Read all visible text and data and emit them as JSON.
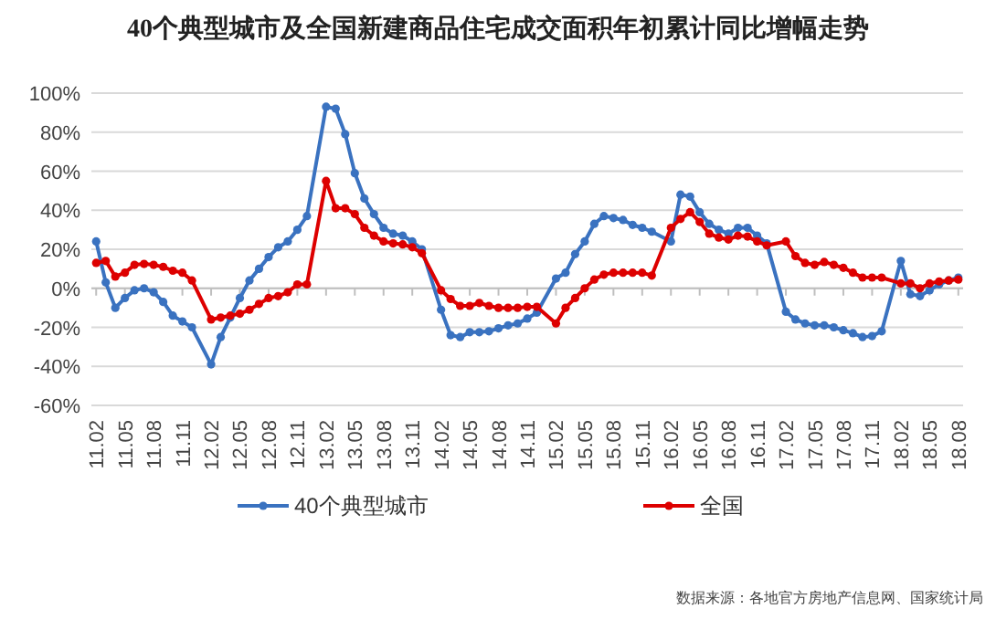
{
  "chart_data": {
    "type": "line",
    "title": "40个典型城市及全国新建商品住宅成交面积年初累计同比增幅走势",
    "categories": [
      "11.02",
      null,
      null,
      "11.05",
      null,
      null,
      "11.08",
      null,
      null,
      "11.11",
      null,
      null,
      "12.02",
      null,
      null,
      "12.05",
      null,
      null,
      "12.08",
      null,
      null,
      "12.11",
      null,
      null,
      "13.02",
      null,
      null,
      "13.05",
      null,
      null,
      "13.08",
      null,
      null,
      "13.11",
      null,
      null,
      "14.02",
      null,
      null,
      "14.05",
      null,
      null,
      "14.08",
      null,
      null,
      "14.11",
      null,
      null,
      "15.02",
      null,
      null,
      "15.05",
      null,
      null,
      "15.08",
      null,
      null,
      "15.11",
      null,
      null,
      "16.02",
      null,
      null,
      "16.05",
      null,
      null,
      "16.08",
      null,
      null,
      "16.11",
      null,
      null,
      "17.02",
      null,
      null,
      "17.05",
      null,
      null,
      "17.08",
      null,
      null,
      "17.11",
      null,
      null,
      "18.02",
      null,
      null,
      "18.05",
      null,
      null,
      "18.08"
    ],
    "series": [
      {
        "name": "40个典型城市",
        "color": "#3a72c0",
        "values": [
          24,
          3,
          -10,
          -5,
          -1,
          0,
          -2,
          -7,
          -14,
          -17,
          -20,
          null,
          -39,
          -25,
          -15,
          -5,
          4,
          10,
          16,
          21,
          24,
          30,
          37,
          null,
          93,
          92,
          79,
          59,
          46,
          38,
          31,
          28,
          27,
          24,
          20,
          null,
          -11,
          -24,
          -25,
          -22.5,
          -22.5,
          -22,
          -20.5,
          -19,
          -18,
          -15.5,
          -12.5,
          null,
          5,
          8,
          17.5,
          24,
          33,
          37,
          36,
          35,
          32.5,
          31,
          29,
          null,
          24,
          48,
          47,
          39,
          33,
          30,
          28,
          31,
          31,
          27,
          23,
          null,
          -12,
          -16,
          -18,
          -19,
          -19,
          -20,
          -21.5,
          -23,
          -25,
          -24.5,
          -22,
          null,
          14,
          -3,
          -4,
          -1,
          2,
          4,
          5.5
        ]
      },
      {
        "name": "全国",
        "color": "#dd0000",
        "values": [
          13,
          14,
          6,
          8,
          12,
          12.5,
          12,
          11,
          9,
          8,
          4,
          null,
          -16,
          -15,
          -14,
          -13,
          -11,
          -8,
          -5,
          -4,
          -2,
          2,
          2,
          null,
          55,
          41,
          41,
          38,
          31,
          27,
          24,
          23,
          22.5,
          21,
          18,
          null,
          -1,
          -5.5,
          -9,
          -9,
          -7.5,
          -9,
          -10,
          -10,
          -10,
          -9.5,
          -9.5,
          null,
          -18,
          -10,
          -5,
          0,
          4.5,
          7,
          8,
          8,
          8,
          8,
          6.5,
          null,
          31,
          35.5,
          39,
          34,
          28,
          26,
          25,
          27,
          26.5,
          24,
          22,
          null,
          24,
          16.5,
          13,
          12,
          13.5,
          12,
          10.5,
          8,
          5.5,
          5.5,
          5.5,
          null,
          2.5,
          2.5,
          0,
          2.5,
          3.5,
          4,
          4.5
        ]
      }
    ],
    "ylim": [
      -60,
      100
    ],
    "yticks": [
      {
        "value": -60,
        "label": "-60%"
      },
      {
        "value": -40,
        "label": "-40%"
      },
      {
        "value": -20,
        "label": "-20%"
      },
      {
        "value": 0,
        "label": "0%"
      },
      {
        "value": 20,
        "label": "20%"
      },
      {
        "value": 40,
        "label": "40%"
      },
      {
        "value": 60,
        "label": "60%"
      },
      {
        "value": 80,
        "label": "80%"
      },
      {
        "value": 100,
        "label": "100%"
      }
    ],
    "grid": "y",
    "legend": "bottom",
    "marker": "circle",
    "line_style": "solid",
    "annotations": [
      "数据来源：各地官方房地产信息网、国家统计局"
    ]
  }
}
